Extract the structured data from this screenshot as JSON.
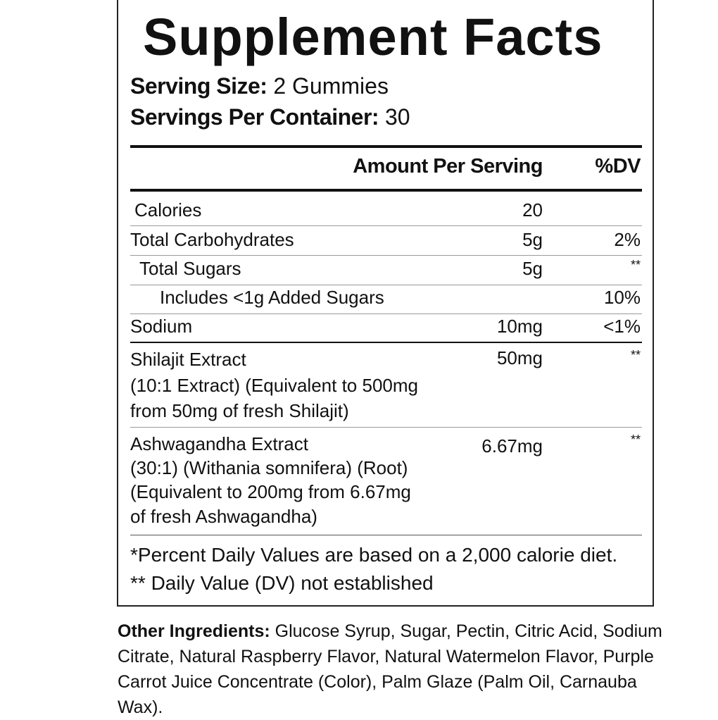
{
  "title": "Supplement Facts",
  "serving_size": {
    "label": "Serving Size:",
    "value": " 2 Gummies"
  },
  "servings_per_container": {
    "label": "Servings Per Container:",
    "value": " 30"
  },
  "header": {
    "amount": "Amount Per Serving",
    "dv": "%DV"
  },
  "rows": [
    {
      "name": "Calories",
      "amount": "20",
      "dv": ""
    },
    {
      "name": "Total Carbohydrates",
      "amount": "5g",
      "dv": "2%"
    },
    {
      "name": "Total Sugars",
      "amount": "5g",
      "dv": "**"
    },
    {
      "name": "Includes <1g Added Sugars",
      "amount": "",
      "dv": "10%"
    },
    {
      "name": "Sodium",
      "amount": "10mg",
      "dv": "<1%"
    },
    {
      "name": [
        "Shilajit Extract",
        "(10:1 Extract) (Equivalent to 500mg",
        "from 50mg of fresh Shilajit)"
      ],
      "amount": "50mg",
      "dv": "**"
    },
    {
      "name": [
        "Ashwagandha Extract",
        "(30:1) (Withania somnifera) (Root)",
        "(Equivalent to 200mg from 6.67mg",
        "of fresh Ashwagandha)"
      ],
      "amount": "6.67mg",
      "dv": "**"
    }
  ],
  "footnotes": [
    "*Percent Daily Values are based on a 2,000 calorie diet.",
    "** Daily Value (DV) not established"
  ],
  "other_ingredients": {
    "label": "Other Ingredients:",
    "text": " Glucose Syrup, Sugar, Pectin, Citric Acid, Sodium Citrate, Natural Raspberry Flavor, Natural Watermelon Flavor, Purple Carrot Juice Concentrate (Color), Palm Glaze (Palm Oil, Carnauba Wax)."
  }
}
